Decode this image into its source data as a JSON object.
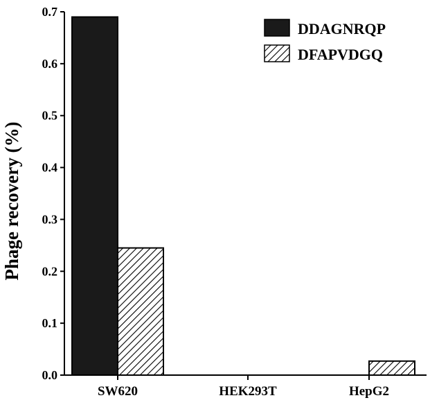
{
  "chart_data": {
    "type": "bar",
    "categories": [
      "SW620",
      "HEK293T",
      "HepG2"
    ],
    "series": [
      {
        "name": "DDAGNRQP",
        "values": [
          0.69,
          0.0,
          0.0
        ],
        "pattern": "solid",
        "color": "#1a1a1a"
      },
      {
        "name": "DFAPVDGQ",
        "values": [
          0.245,
          0.0,
          0.027
        ],
        "pattern": "diagonal-hatch",
        "color": "#ffffff"
      }
    ],
    "ylabel": "Phage recovery (%)",
    "xlabel": "",
    "title": "",
    "ylim": [
      0,
      0.7
    ],
    "yticks": [
      "0.0",
      "0.1",
      "0.2",
      "0.3",
      "0.4",
      "0.5",
      "0.6",
      "0.7"
    ],
    "grid": false,
    "legend_position": "top-right"
  }
}
